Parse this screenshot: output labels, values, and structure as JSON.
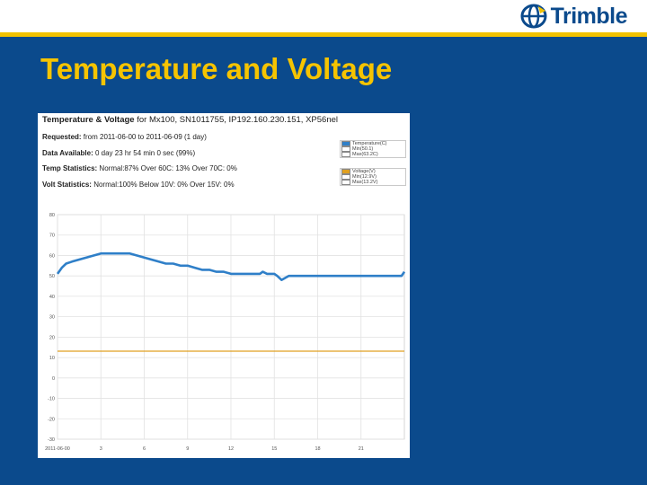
{
  "header": {
    "logo_text": "Trimble",
    "brand_color": "#0b4a8c",
    "accent_color": "#f2c200"
  },
  "slide": {
    "title": "Temperature and Voltage"
  },
  "report": {
    "title_bold": "Temperature & Voltage",
    "title_rest": " for Mx100, SN1011755, IP192.160.230.151, XP56nel",
    "requested_label": "Requested:",
    "requested_value": " from 2011-06-00 to 2011-06-09 (1 day)",
    "available_label": "Data Available:",
    "available_value": " 0 day 23 hr 54 min 0 sec (99%)",
    "temp_stats_label": "Temp Statistics:",
    "temp_stats_value": " Normal:87% Over 60C: 13% Over 70C: 0%",
    "volt_stats_label": "Volt Statistics:",
    "volt_stats_value": " Normal:100% Below 10V: 0% Over 15V: 0%"
  },
  "legend": {
    "temp": [
      "Temperature(C)",
      "Min(50.1)",
      "Max(63.2C)"
    ],
    "volt": [
      "Voltage(V)",
      "Min(12.9V)",
      "Max(13.2V)"
    ],
    "temp_color": "#2f7fc8",
    "volt_color": "#e0a020"
  },
  "chart_data": {
    "type": "line",
    "y_ticks": [
      "80",
      "70",
      "60",
      "50",
      "40",
      "30",
      "20",
      "10",
      "0",
      "-10",
      "-20",
      "-30"
    ],
    "x_ticks": [
      "2011-06-00",
      "3",
      "6",
      "9",
      "12",
      "15",
      "18",
      "21"
    ],
    "ylim": [
      -30,
      80
    ],
    "xlim": [
      0,
      24
    ],
    "series": [
      {
        "name": "Temperature(C)",
        "color": "#2f7fc8",
        "x": [
          0,
          0.3,
          0.6,
          1.0,
          1.5,
          2.0,
          2.5,
          3.0,
          3.5,
          4.0,
          5.0,
          5.5,
          6.0,
          6.5,
          7.0,
          7.5,
          8.0,
          8.5,
          9.0,
          9.5,
          10.0,
          10.5,
          11.0,
          11.5,
          12.0,
          12.5,
          13.0,
          13.5,
          14.0,
          14.2,
          14.5,
          15.0,
          15.2,
          15.5,
          16.0,
          17.0,
          18.0,
          19.0,
          20.0,
          21.0,
          22.0,
          23.0,
          23.8,
          24.0
        ],
        "y": [
          51,
          54,
          56,
          57,
          58,
          59,
          60,
          61,
          61,
          61,
          61,
          60,
          59,
          58,
          57,
          56,
          56,
          55,
          55,
          54,
          53,
          53,
          52,
          52,
          51,
          51,
          51,
          51,
          51,
          52,
          51,
          51,
          50,
          48,
          50,
          50,
          50,
          50,
          50,
          50,
          50,
          50,
          50,
          52
        ]
      },
      {
        "name": "Voltage(V)",
        "color": "#e0a020",
        "x": [
          0,
          24
        ],
        "y": [
          13.1,
          13.1
        ]
      }
    ]
  }
}
